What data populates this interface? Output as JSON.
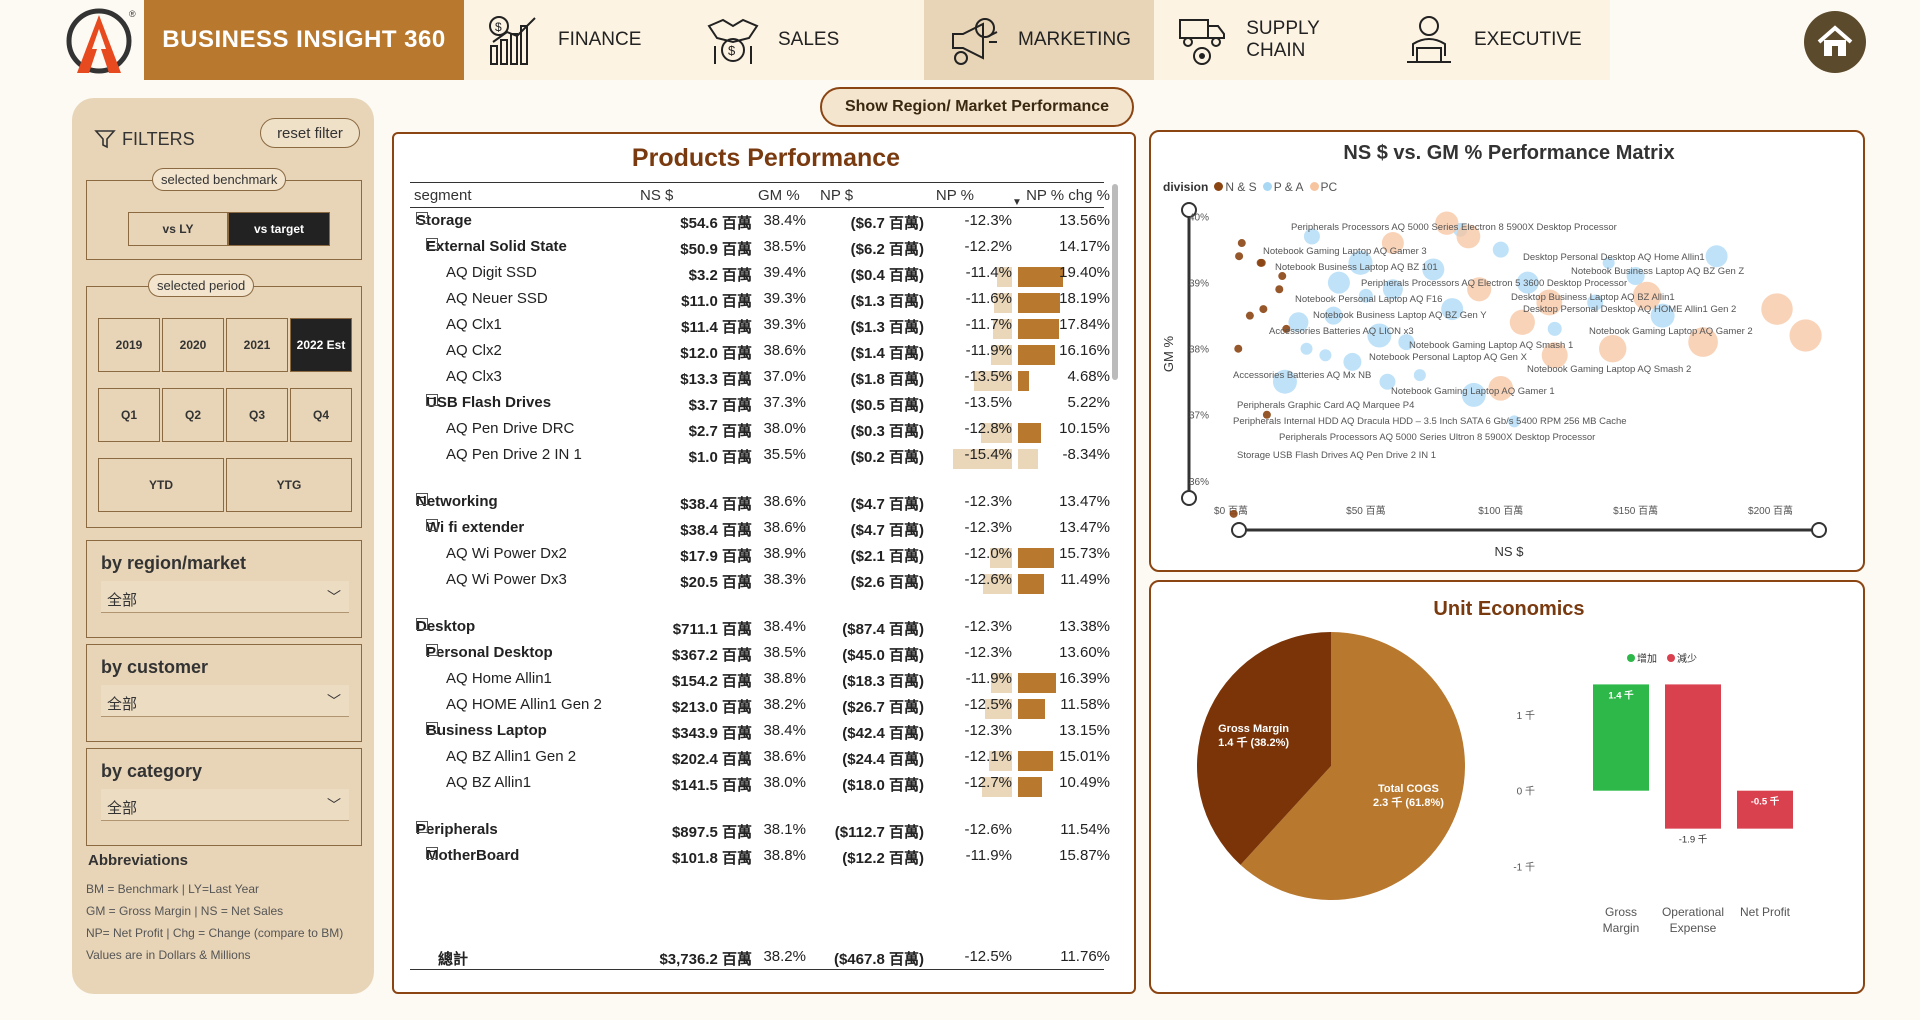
{
  "header": {
    "brand": "BUSINESS INSIGHT 360",
    "logo_mark": "®",
    "nav": [
      {
        "label": "FINANCE",
        "icon": "finance-chart-icon"
      },
      {
        "label": "SALES",
        "icon": "sales-handshake-icon"
      },
      {
        "label": "MARKETING",
        "icon": "marketing-megaphone-icon",
        "active": true
      },
      {
        "label": "SUPPLY CHAIN",
        "icon": "supply-chain-truck-icon"
      },
      {
        "label": "EXECUTIVE",
        "icon": "executive-person-icon"
      }
    ],
    "home_icon": "home-icon"
  },
  "region_button": "Show Region/ Market Performance",
  "filters": {
    "title": "FILTERS",
    "reset": "reset filter",
    "benchmark_label": "selected benchmark",
    "benchmark_options": [
      "vs LY",
      "vs target"
    ],
    "benchmark_selected": "vs target",
    "period_label": "selected period",
    "years": [
      "2019",
      "2020",
      "2021",
      "2022 Est"
    ],
    "year_selected": "2022 Est",
    "quarters": [
      "Q1",
      "Q2",
      "Q3",
      "Q4"
    ],
    "ytd": [
      "YTD",
      "YTG"
    ],
    "dropdowns": [
      {
        "title": "by region/market",
        "value": "全部"
      },
      {
        "title": "by customer",
        "value": "全部"
      },
      {
        "title": "by category",
        "value": "全部"
      }
    ],
    "abbreviations_title": "Abbreviations",
    "abbreviations": [
      "BM = Benchmark | LY=Last Year",
      "GM = Gross Margin | NS = Net Sales",
      "NP= Net Profit | Chg = Change (compare to BM)",
      "Values are in Dollars & Millions"
    ]
  },
  "products": {
    "title": "Products Performance",
    "columns": [
      "segment",
      "NS $",
      "GM %",
      "NP $",
      "NP %",
      "NP % chg %"
    ],
    "rows": [
      {
        "level": 0,
        "expand": "⊟",
        "segment": "Storage",
        "ns": "$54.6 百萬",
        "gm": "38.4%",
        "np": "($6.7 百萬)",
        "npp": "-12.3%",
        "chg": "13.56%"
      },
      {
        "level": 1,
        "expand": "⊟",
        "segment": "External Solid State",
        "ns": "$50.9 百萬",
        "gm": "38.5%",
        "np": "($6.2 百萬)",
        "npp": "-12.2%",
        "chg": "14.17%"
      },
      {
        "level": 2,
        "segment": "AQ Digit SSD",
        "ns": "$3.2 百萬",
        "gm": "39.4%",
        "np": "($0.4 百萬)",
        "npp": "-11.4%",
        "chg": "19.40%",
        "npv": -11.4,
        "chgv": 19.4
      },
      {
        "level": 2,
        "segment": "AQ Neuer SSD",
        "ns": "$11.0 百萬",
        "gm": "39.3%",
        "np": "($1.3 百萬)",
        "npp": "-11.6%",
        "chg": "18.19%",
        "npv": -11.6,
        "chgv": 18.19
      },
      {
        "level": 2,
        "segment": "AQ Clx1",
        "ns": "$11.4 百萬",
        "gm": "39.3%",
        "np": "($1.3 百萬)",
        "npp": "-11.7%",
        "chg": "17.84%",
        "npv": -11.7,
        "chgv": 17.84
      },
      {
        "level": 2,
        "segment": "AQ Clx2",
        "ns": "$12.0 百萬",
        "gm": "38.6%",
        "np": "($1.4 百萬)",
        "npp": "-11.9%",
        "chg": "16.16%",
        "npv": -11.9,
        "chgv": 16.16
      },
      {
        "level": 2,
        "segment": "AQ Clx3",
        "ns": "$13.3 百萬",
        "gm": "37.0%",
        "np": "($1.8 百萬)",
        "npp": "-13.5%",
        "chg": "4.68%",
        "npv": -13.5,
        "chgv": 4.68
      },
      {
        "level": 1,
        "expand": "⊟",
        "segment": "USB Flash Drives",
        "ns": "$3.7 百萬",
        "gm": "37.3%",
        "np": "($0.5 百萬)",
        "npp": "-13.5%",
        "chg": "5.22%"
      },
      {
        "level": 2,
        "segment": "AQ Pen Drive DRC",
        "ns": "$2.7 百萬",
        "gm": "38.0%",
        "np": "($0.3 百萬)",
        "npp": "-12.8%",
        "chg": "10.15%",
        "npv": -12.8,
        "chgv": 10.15
      },
      {
        "level": 2,
        "segment": "AQ Pen Drive 2 IN 1",
        "ns": "$1.0 百萬",
        "gm": "35.5%",
        "np": "($0.2 百萬)",
        "npp": "-15.4%",
        "chg": "-8.34%",
        "npv": -15.4,
        "chgv": -8.34
      },
      {
        "spacer": true
      },
      {
        "level": 0,
        "expand": "⊟",
        "segment": "Networking",
        "ns": "$38.4 百萬",
        "gm": "38.6%",
        "np": "($4.7 百萬)",
        "npp": "-12.3%",
        "chg": "13.47%"
      },
      {
        "level": 1,
        "expand": "⊟",
        "segment": "Wi fi extender",
        "ns": "$38.4 百萬",
        "gm": "38.6%",
        "np": "($4.7 百萬)",
        "npp": "-12.3%",
        "chg": "13.47%"
      },
      {
        "level": 2,
        "segment": "AQ Wi Power Dx2",
        "ns": "$17.9 百萬",
        "gm": "38.9%",
        "np": "($2.1 百萬)",
        "npp": "-12.0%",
        "chg": "15.73%",
        "npv": -12.0,
        "chgv": 15.73
      },
      {
        "level": 2,
        "segment": "AQ Wi Power Dx3",
        "ns": "$20.5 百萬",
        "gm": "38.3%",
        "np": "($2.6 百萬)",
        "npp": "-12.6%",
        "chg": "11.49%",
        "npv": -12.6,
        "chgv": 11.49
      },
      {
        "spacer": true
      },
      {
        "level": 0,
        "expand": "⊟",
        "segment": "Desktop",
        "ns": "$711.1 百萬",
        "gm": "38.4%",
        "np": "($87.4 百萬)",
        "npp": "-12.3%",
        "chg": "13.38%"
      },
      {
        "level": 1,
        "expand": "⊟",
        "segment": "Personal Desktop",
        "ns": "$367.2 百萬",
        "gm": "38.5%",
        "np": "($45.0 百萬)",
        "npp": "-12.3%",
        "chg": "13.60%"
      },
      {
        "level": 2,
        "segment": "AQ Home Allin1",
        "ns": "$154.2 百萬",
        "gm": "38.8%",
        "np": "($18.3 百萬)",
        "npp": "-11.9%",
        "chg": "16.39%",
        "npv": -11.9,
        "chgv": 16.39
      },
      {
        "level": 2,
        "segment": "AQ HOME Allin1 Gen 2",
        "ns": "$213.0 百萬",
        "gm": "38.2%",
        "np": "($26.7 百萬)",
        "npp": "-12.5%",
        "chg": "11.58%",
        "npv": -12.5,
        "chgv": 11.58
      },
      {
        "level": 1,
        "expand": "⊟",
        "segment": "Business Laptop",
        "ns": "$343.9 百萬",
        "gm": "38.4%",
        "np": "($42.4 百萬)",
        "npp": "-12.3%",
        "chg": "13.15%"
      },
      {
        "level": 2,
        "segment": "AQ BZ Allin1 Gen 2",
        "ns": "$202.4 百萬",
        "gm": "38.6%",
        "np": "($24.4 百萬)",
        "npp": "-12.1%",
        "chg": "15.01%",
        "npv": -12.1,
        "chgv": 15.01
      },
      {
        "level": 2,
        "segment": "AQ BZ Allin1",
        "ns": "$141.5 百萬",
        "gm": "38.0%",
        "np": "($18.0 百萬)",
        "npp": "-12.7%",
        "chg": "10.49%",
        "npv": -12.7,
        "chgv": 10.49
      },
      {
        "spacer": true
      },
      {
        "level": 0,
        "expand": "⊟",
        "segment": "Peripherals",
        "ns": "$897.5 百萬",
        "gm": "38.1%",
        "np": "($112.7 百萬)",
        "npp": "-12.6%",
        "chg": "11.54%"
      },
      {
        "level": 1,
        "expand": "⊟",
        "segment": "MotherBoard",
        "ns": "$101.8 百萬",
        "gm": "38.8%",
        "np": "($12.2 百萬)",
        "npp": "-11.9%",
        "chg": "15.87%"
      }
    ],
    "total": {
      "segment": "總計",
      "ns": "$3,736.2 百萬",
      "gm": "38.2%",
      "np": "($467.8 百萬)",
      "npp": "-12.5%",
      "chg": "11.76%"
    }
  },
  "chart_data": [
    {
      "type": "scatter",
      "title": "NS $ vs. GM % Performance Matrix",
      "xlabel": "NS $",
      "ylabel": "GM %",
      "x_ticks": [
        "$0 百萬",
        "$50 百萬",
        "$100 百萬",
        "$150 百萬",
        "$200 百萬"
      ],
      "y_ticks": [
        "40%",
        "39%",
        "38%",
        "37%",
        "36%"
      ],
      "xlim": [
        0,
        215
      ],
      "ylim": [
        35.8,
        40.1
      ],
      "legend_title": "division",
      "legend": [
        {
          "name": "N & S",
          "color": "#8b4513"
        },
        {
          "name": "P & A",
          "color": "#a9d8f5"
        },
        {
          "name": "PC",
          "color": "#f7c4a0"
        }
      ],
      "series": [
        {
          "name": "N & S",
          "color": "#8b4513",
          "points": [
            {
              "x": 3,
              "y": 39.4
            },
            {
              "x": 11,
              "y": 39.3
            },
            {
              "x": 11.4,
              "y": 39.3
            },
            {
              "x": 12,
              "y": 38.6
            },
            {
              "x": 13.3,
              "y": 37.0
            },
            {
              "x": 2.7,
              "y": 38.0
            },
            {
              "x": 1,
              "y": 35.5
            },
            {
              "x": 17.9,
              "y": 38.9
            },
            {
              "x": 20.5,
              "y": 38.3
            },
            {
              "x": 4,
              "y": 39.6
            },
            {
              "x": 19,
              "y": 39.1
            },
            {
              "x": 7,
              "y": 38.5
            }
          ]
        },
        {
          "name": "P & A",
          "color": "#a9d8f5",
          "points": [
            {
              "x": 40,
              "y": 39.0
            },
            {
              "x": 38,
              "y": 38.5
            },
            {
              "x": 28,
              "y": 38.0
            },
            {
              "x": 45,
              "y": 37.8
            },
            {
              "x": 55,
              "y": 38.2
            },
            {
              "x": 60,
              "y": 38.9
            },
            {
              "x": 75,
              "y": 39.2
            },
            {
              "x": 82,
              "y": 38.6
            },
            {
              "x": 100,
              "y": 39.5
            },
            {
              "x": 110,
              "y": 39.0
            },
            {
              "x": 120,
              "y": 38.3
            },
            {
              "x": 135,
              "y": 38.7
            },
            {
              "x": 150,
              "y": 39.1
            },
            {
              "x": 160,
              "y": 38.5
            },
            {
              "x": 180,
              "y": 39.4
            },
            {
              "x": 90,
              "y": 37.3
            },
            {
              "x": 105,
              "y": 36.9
            },
            {
              "x": 70,
              "y": 37.6
            },
            {
              "x": 30,
              "y": 39.7
            },
            {
              "x": 50,
              "y": 38.8
            },
            {
              "x": 25,
              "y": 38.4
            },
            {
              "x": 35,
              "y": 37.9
            },
            {
              "x": 65,
              "y": 38.1
            },
            {
              "x": 140,
              "y": 39.3
            },
            {
              "x": 85,
              "y": 39.8
            },
            {
              "x": 20,
              "y": 37.5
            },
            {
              "x": 48,
              "y": 39.3
            },
            {
              "x": 58,
              "y": 37.5
            }
          ]
        },
        {
          "name": "PC",
          "color": "#f7c4a0",
          "points": [
            {
              "x": 80,
              "y": 39.9
            },
            {
              "x": 88,
              "y": 39.7
            },
            {
              "x": 141.5,
              "y": 38.0
            },
            {
              "x": 154.2,
              "y": 38.8
            },
            {
              "x": 202.4,
              "y": 38.6
            },
            {
              "x": 213,
              "y": 38.2
            },
            {
              "x": 60,
              "y": 39.6
            },
            {
              "x": 92,
              "y": 38.9
            },
            {
              "x": 120,
              "y": 37.9
            },
            {
              "x": 100,
              "y": 37.4
            },
            {
              "x": 108,
              "y": 38.4
            },
            {
              "x": 175,
              "y": 38.1
            },
            {
              "x": 118,
              "y": 38.7
            }
          ]
        }
      ],
      "annotations": [
        "Peripherals Processors AQ 5000 Series Electron 8 5900X Desktop Processor",
        "Notebook Gaming Laptop AQ Gamer 3",
        "Desktop Personal Desktop AQ Home Allin1",
        "Notebook Business Laptop AQ BZ 101",
        "Notebook Business Laptop AQ BZ Gen Z",
        "Peripherals Processors AQ Electron 5 3600 Desktop Processor",
        "Desktop Business Laptop AQ BZ Allin1",
        "Notebook Personal Laptop AQ F16",
        "Desktop Personal Desktop AQ HOME Allin1 Gen 2",
        "Notebook Business Laptop AQ BZ Gen Y",
        "Accessories Batteries AQ LION x3",
        "Notebook Gaming Laptop AQ Gamer 2",
        "Notebook Gaming Laptop AQ Smash 1",
        "Notebook Personal Laptop AQ Gen X",
        "Notebook Gaming Laptop AQ Smash 2",
        "Accessories Batteries AQ Mx NB",
        "Notebook Gaming Laptop AQ Gamer 1",
        "Peripherals Graphic Card AQ Marquee P4",
        "Peripherals Internal HDD AQ Dracula HDD – 3.5 Inch SATA 6 Gb/s 5400 RPM 256 MB Cache",
        "Peripherals Processors AQ 5000 Series Ultron 8 5900X Desktop Processor",
        "Storage USB Flash Drives AQ Pen Drive 2 IN 1"
      ]
    },
    {
      "type": "pie",
      "title": "Unit Economics",
      "slices": [
        {
          "name": "Gross Margin",
          "label": "1.4 千 (38.2%)",
          "value": 38.2,
          "color": "#7a3408"
        },
        {
          "name": "Total COGS",
          "label": "2.3 千 (61.8%)",
          "value": 61.8,
          "color": "#b8782e"
        }
      ]
    },
    {
      "type": "bar",
      "legend": [
        {
          "name": "增加",
          "color": "#2eb84a"
        },
        {
          "name": "減少",
          "color": "#d9414f"
        }
      ],
      "y_ticks": [
        "1 千",
        "0 千",
        "-1 千"
      ],
      "ylim": [
        -1.15,
        1.3
      ],
      "categories": [
        "Gross Margin",
        "Operational Expense",
        "Net Profit"
      ],
      "bars": [
        {
          "start": 0,
          "end": 1.4,
          "label": "1.4 千",
          "color": "#2eb84a"
        },
        {
          "start": 1.4,
          "end": -0.5,
          "label": "-1.9 千",
          "color": "#d9414f"
        },
        {
          "start": -0.5,
          "end": 0,
          "label": "-0.5 千",
          "color": "#d9414f"
        }
      ]
    }
  ]
}
